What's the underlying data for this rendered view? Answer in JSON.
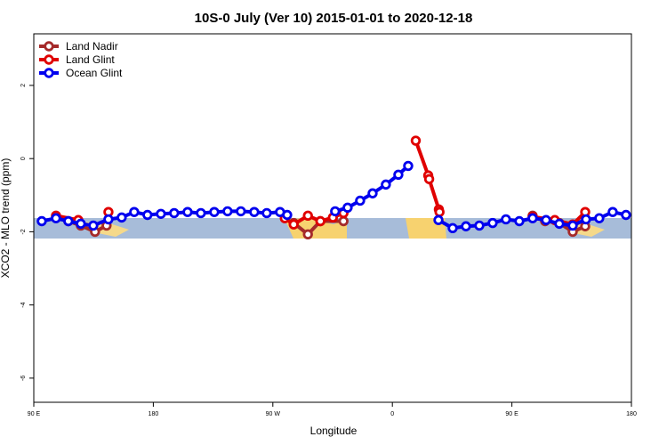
{
  "chart_data": {
    "type": "line",
    "title": "10S-0 July (Ver 10)   2015-01-01 to 2020-12-18",
    "x_label": "Longitude",
    "y_label": "XCO2 - MLO trend (ppm)",
    "xlim": [
      90,
      540
    ],
    "ylim": [
      -6.66,
      3.41
    ],
    "xticks": [
      {
        "value": 90,
        "label": "90 E"
      },
      {
        "value": 180,
        "label": "180"
      },
      {
        "value": 270,
        "label": "90 W"
      },
      {
        "value": 360,
        "label": "0"
      },
      {
        "value": 450,
        "label": "90 E"
      },
      {
        "value": 540,
        "label": "180"
      }
    ],
    "yticks": [
      -6,
      -4,
      -2,
      0,
      2
    ],
    "legend": "top-left",
    "series": [
      {
        "name": "Land Nadir",
        "color": "#a52a2a",
        "x": [
          106.7,
          116,
          125.4,
          136.1,
          144.8,
          null,
          285.7,
          296.4,
          305.8,
          323.2,
          null,
          465.6,
          475,
          485.7,
          495.8,
          505.2
        ],
        "values": [
          -1.61,
          -1.71,
          -1.83,
          -2.0,
          -1.83,
          null,
          -1.76,
          -2.07,
          -1.71,
          -1.71,
          null,
          -1.56,
          -1.71,
          -1.76,
          -2.0,
          -1.85
        ]
      },
      {
        "name": "Land Glint",
        "color": "#e00000",
        "x": [
          106.7,
          123.5,
          null,
          146.2,
          null,
          279,
          285.7,
          296.4,
          305.8,
          315.2,
          323.2,
          null,
          377.6,
          387,
          387.7,
          395,
          395.5,
          null,
          465.6,
          482.3,
          495.8,
          505.2
        ],
        "values": [
          -1.56,
          -1.68,
          null,
          -1.46,
          null,
          -1.63,
          -1.8,
          -1.56,
          -1.71,
          -1.61,
          -1.49,
          null,
          0.49,
          -0.46,
          -0.56,
          -1.39,
          -1.46,
          null,
          -1.59,
          -1.68,
          -1.8,
          -1.46
        ]
      },
      {
        "name": "Ocean Glint",
        "color": "#0000ee",
        "x": [
          96,
          106.7,
          116,
          125.4,
          134.8,
          146.2,
          156.2,
          165.6,
          175.6,
          185.7,
          195.7,
          205.8,
          215.8,
          225.9,
          235.9,
          245.9,
          256,
          265.4,
          275.4,
          280.8,
          null,
          316.9,
          326.3,
          335.7,
          345.1,
          355.1,
          364.5,
          371.9,
          null,
          394.7,
          405.4,
          415.4,
          425.5,
          435.5,
          445.5,
          455.6,
          465.6,
          475.7,
          485.7,
          495.8,
          505.8,
          515.8,
          525.9,
          535.9
        ],
        "values": [
          -1.71,
          -1.63,
          -1.71,
          -1.78,
          -1.83,
          -1.66,
          -1.61,
          -1.46,
          -1.54,
          -1.51,
          -1.49,
          -1.46,
          -1.49,
          -1.46,
          -1.44,
          -1.44,
          -1.46,
          -1.49,
          -1.46,
          -1.54,
          null,
          -1.44,
          -1.34,
          -1.15,
          -0.95,
          -0.71,
          -0.44,
          -0.2,
          null,
          -1.68,
          -1.9,
          -1.85,
          -1.83,
          -1.76,
          -1.66,
          -1.71,
          -1.63,
          -1.68,
          -1.78,
          -1.83,
          -1.66,
          -1.63,
          -1.46,
          -1.54
        ]
      }
    ]
  }
}
